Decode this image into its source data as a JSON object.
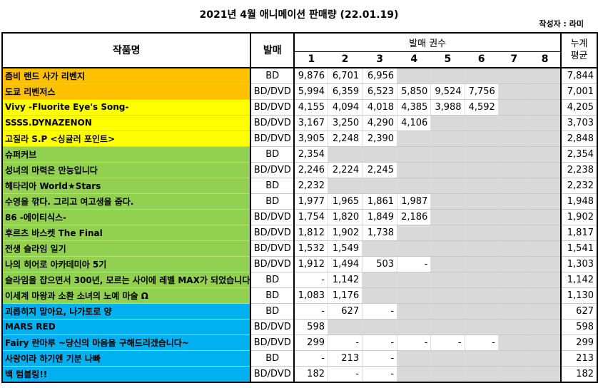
{
  "title": "2021년 4월 애니메이션 판매량 (22.01.19)",
  "author": "작성자 : 라미",
  "headers": {
    "name": "작품명",
    "format": "발매",
    "volumes": "발매 권수",
    "average_line1": "누계",
    "average_line2": "평균",
    "vol_numbers": [
      "1",
      "2",
      "3",
      "4",
      "5",
      "6",
      "7",
      "8"
    ]
  },
  "colors": {
    "group_orange": "#ffc000",
    "group_yellow": "#ffff00",
    "group_green": "#92d050",
    "group_blue": "#00b0f0",
    "empty_cell": "#d9d9d9"
  },
  "rows": [
    {
      "name": "좀비 랜드 사가 리벤지",
      "format": "BD",
      "group": "orange",
      "vols": [
        "9,876",
        "6,701",
        "6,956",
        null,
        null,
        null,
        null,
        null
      ],
      "avg": "7,844"
    },
    {
      "name": "도쿄 리벤저스",
      "format": "BD/DVD",
      "group": "orange",
      "vols": [
        "5,994",
        "6,359",
        "6,523",
        "5,850",
        "9,524",
        "7,756",
        null,
        null
      ],
      "avg": "7,001"
    },
    {
      "name": "Vivy -Fluorite Eye's Song-",
      "format": "BD/DVD",
      "group": "yellow",
      "vols": [
        "4,155",
        "4,094",
        "4,018",
        "4,385",
        "3,988",
        "4,592",
        null,
        null
      ],
      "avg": "4,205"
    },
    {
      "name": "SSSS.DYNAZENON",
      "format": "BD/DVD",
      "group": "yellow",
      "vols": [
        "3,167",
        "3,250",
        "4,290",
        "4,106",
        null,
        null,
        null,
        null
      ],
      "avg": "3,703"
    },
    {
      "name": "고질라 S.P <싱귤러 포인트>",
      "format": "BD/DVD",
      "group": "yellow",
      "vols": [
        "3,905",
        "2,248",
        "2,390",
        null,
        null,
        null,
        null,
        null
      ],
      "avg": "2,848"
    },
    {
      "name": "슈퍼커브",
      "format": "BD",
      "group": "green",
      "vols": [
        "2,354",
        null,
        null,
        null,
        null,
        null,
        null,
        null
      ],
      "avg": "2,354"
    },
    {
      "name": "성녀의 마력은 만능입니다",
      "format": "BD/DVD",
      "group": "green",
      "vols": [
        "2,246",
        "2,224",
        "2,245",
        null,
        null,
        null,
        null,
        null
      ],
      "avg": "2,238"
    },
    {
      "name": "헤타리아 World★Stars",
      "format": "BD",
      "group": "green",
      "vols": [
        "2,232",
        null,
        null,
        null,
        null,
        null,
        null,
        null
      ],
      "avg": "2,232"
    },
    {
      "name": "수영을 깎다. 그리고 여고생을 줍다.",
      "format": "BD",
      "group": "green",
      "vols": [
        "1,977",
        "1,965",
        "1,861",
        "1,987",
        null,
        null,
        null,
        null
      ],
      "avg": "1,948"
    },
    {
      "name": "86 -에이티식스-",
      "format": "BD/DVD",
      "group": "green",
      "vols": [
        "1,754",
        "1,820",
        "1,849",
        "2,186",
        null,
        null,
        null,
        null
      ],
      "avg": "1,902"
    },
    {
      "name": "후르츠 바스켓 The Final",
      "format": "BD/DVD",
      "group": "green",
      "vols": [
        "1,812",
        "1,902",
        "1,738",
        null,
        null,
        null,
        null,
        null
      ],
      "avg": "1,817"
    },
    {
      "name": "전생 슬라임 일기",
      "format": "BD/DVD",
      "group": "green",
      "vols": [
        "1,532",
        "1,549",
        null,
        null,
        null,
        null,
        null,
        null
      ],
      "avg": "1,541"
    },
    {
      "name": "나의 히어로 아카데미아 5기",
      "format": "BD/DVD",
      "group": "green",
      "vols": [
        "1,912",
        "1,494",
        "503",
        "-",
        null,
        null,
        null,
        null
      ],
      "avg": "1,303"
    },
    {
      "name": "슬라임을 잡으면서 300년, 모르는 사이에 레벨 MAX가 되었습니다",
      "format": "BD",
      "group": "green",
      "vols": [
        "-",
        "1,142",
        null,
        null,
        null,
        null,
        null,
        null
      ],
      "avg": "1,142"
    },
    {
      "name": "이세계 마왕과 소환 소녀의 노예 마술 Ω",
      "format": "BD",
      "group": "green",
      "vols": [
        "1,083",
        "1,176",
        null,
        null,
        null,
        null,
        null,
        null
      ],
      "avg": "1,130"
    },
    {
      "name": "괴롭히지 말아요, 나가토로 양",
      "format": "BD",
      "group": "blue",
      "vols": [
        "-",
        "627",
        "-",
        null,
        null,
        null,
        null,
        null
      ],
      "avg": "627"
    },
    {
      "name": "MARS RED",
      "format": "BD/DVD",
      "group": "blue",
      "vols": [
        "598",
        null,
        null,
        null,
        null,
        null,
        null,
        null
      ],
      "avg": "598"
    },
    {
      "name": "Fairy 란마루 ~당신의 마음을 구해드리겠습니다~",
      "format": "BD/DVD",
      "group": "blue",
      "vols": [
        "299",
        "-",
        "-",
        "-",
        "-",
        "-",
        null,
        null
      ],
      "avg": "299"
    },
    {
      "name": "사랑이라 하기엔 기분 나빠",
      "format": "BD",
      "group": "blue",
      "vols": [
        "-",
        "213",
        "-",
        null,
        null,
        null,
        null,
        null
      ],
      "avg": "213"
    },
    {
      "name": "백 텀블링!!",
      "format": "BD/DVD",
      "group": "blue",
      "vols": [
        "182",
        "-",
        "-",
        null,
        null,
        null,
        null,
        null
      ],
      "avg": "182"
    }
  ]
}
